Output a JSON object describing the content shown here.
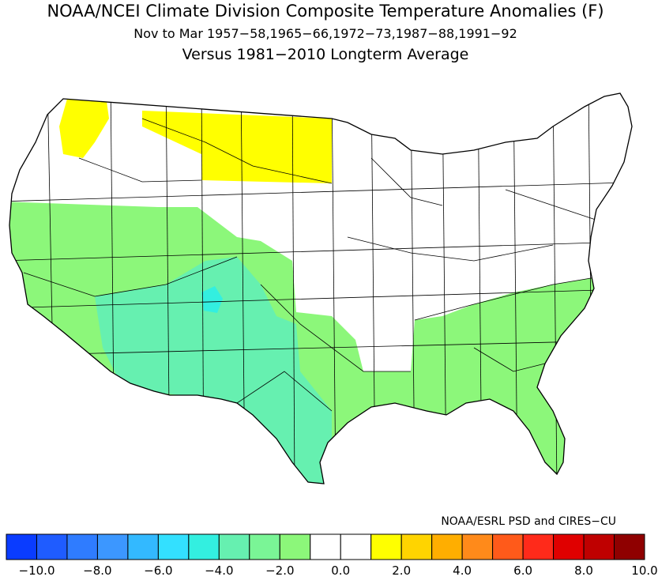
{
  "titles": {
    "line1": "NOAA/NCEI Climate Division Composite Temperature Anomalies (F)",
    "line2": "Nov to Mar  1957−58,1965−66,1972−73,1987−88,1991−92",
    "line3": "Versus 1981−2010 Longterm Average"
  },
  "credit": "NOAA/ESRL PSD and CIRES−CU",
  "legend": {
    "colors": [
      "#0a3cff",
      "#1f5cff",
      "#2f7cff",
      "#3c97ff",
      "#33b9ff",
      "#33e0ff",
      "#33efe0",
      "#66f0b0",
      "#7af596",
      "#8cf77a",
      "#ffffff",
      "#ffffff",
      "#ffff00",
      "#ffd400",
      "#ffae00",
      "#ff8a1a",
      "#ff5a1a",
      "#ff2a1a",
      "#e00000",
      "#bf0000",
      "#8f0000"
    ],
    "ticks": [
      "−10.0",
      "−8.0",
      "−6.0",
      "−4.0",
      "−2.0",
      "0.0",
      "2.0",
      "4.0",
      "6.0",
      "8.0",
      "10.0"
    ]
  },
  "map_colors": {
    "warm": "#ffff00",
    "neutral": "#ffffff",
    "cool_light": "#8cf77a",
    "cool_mid": "#66f0b0",
    "cool_strong": "#33efe0",
    "outline": "#000000"
  }
}
